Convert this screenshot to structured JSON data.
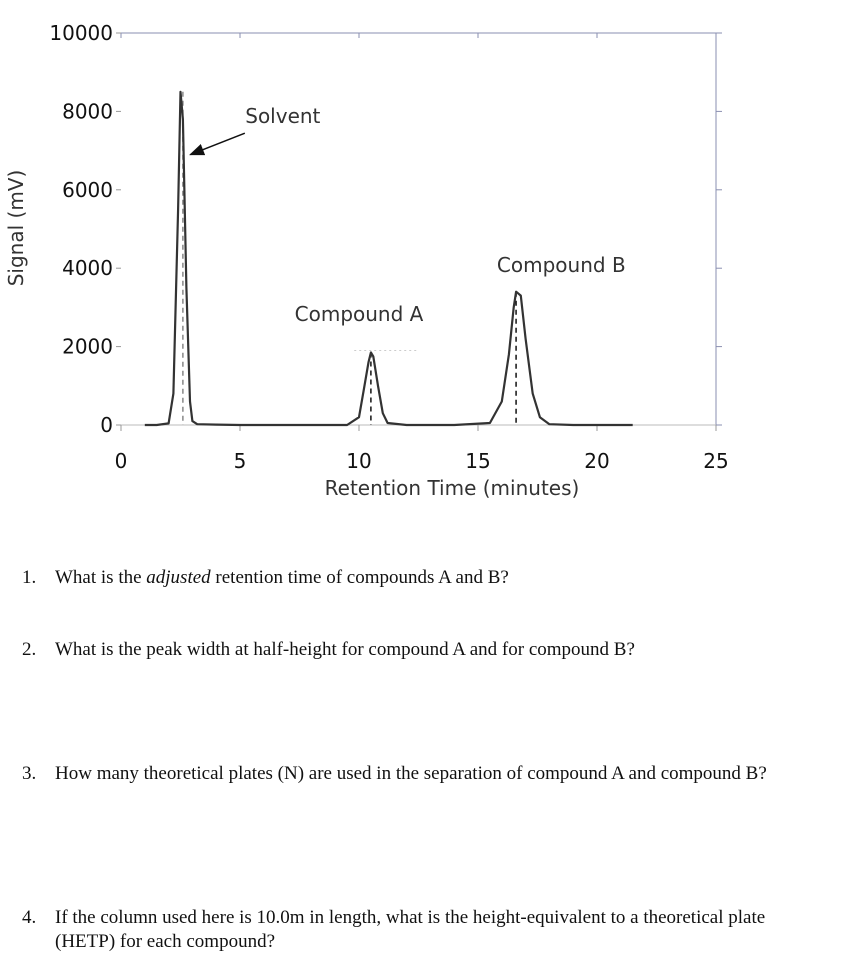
{
  "chart_data": {
    "type": "line",
    "xlabel": "Retention Time (minutes)",
    "ylabel": "Signal (mV)",
    "xlim": [
      0,
      25
    ],
    "ylim": [
      0,
      10000
    ],
    "x_ticks": [
      0,
      5,
      10,
      15,
      20,
      25
    ],
    "x_tick_labels": [
      "0",
      "5",
      "10",
      "15",
      "20",
      "25"
    ],
    "y_ticks": [
      0,
      2000,
      4000,
      6000,
      8000,
      10000
    ],
    "y_tick_labels": [
      "0",
      "2000",
      "4000",
      "6000",
      "8000",
      "10000"
    ],
    "grid": false,
    "series": [
      {
        "x": [
          1.0,
          1.5,
          2.0,
          2.2,
          2.4,
          2.5,
          2.6,
          2.75,
          2.9,
          3.0,
          3.2,
          4.0,
          5.0,
          6.0,
          8.0,
          9.5,
          10.0,
          10.2,
          10.4,
          10.5,
          10.6,
          10.8,
          11.0,
          11.2,
          12.0,
          14.0,
          15.5,
          16.0,
          16.3,
          16.5,
          16.6,
          16.7,
          16.8,
          17.0,
          17.3,
          17.6,
          18.0,
          19.0,
          20.0,
          21.5
        ],
        "y": [
          0,
          0,
          40,
          800,
          5500,
          8500,
          7800,
          3500,
          600,
          100,
          20,
          10,
          0,
          0,
          0,
          0,
          200,
          900,
          1600,
          1850,
          1750,
          1000,
          300,
          50,
          0,
          0,
          50,
          600,
          1800,
          3000,
          3400,
          3350,
          3300,
          2200,
          800,
          200,
          20,
          0,
          0,
          0
        ]
      }
    ],
    "retention_markers": [
      2.6,
      10.5,
      16.6
    ],
    "annotations": [
      {
        "text": "Solvent",
        "x": 6.8,
        "y": 7700,
        "arrow_to": [
          2.75,
          6900
        ]
      },
      {
        "text": "Compound A",
        "x": 10.0,
        "y": 2650
      },
      {
        "text": "Compound B",
        "x": 18.5,
        "y": 3900
      }
    ]
  },
  "questions": [
    {
      "number": "1.",
      "text_before": "What is the ",
      "emphasis": "adjusted",
      "text_after": " retention time of compounds A and B?"
    },
    {
      "number": "2.",
      "text_before": "What is the peak width at half-height for compound A and for compound B?",
      "emphasis": "",
      "text_after": ""
    },
    {
      "number": "3.",
      "text_before": "How many theoretical plates (N) are used in the separation of compound A and compound B?",
      "emphasis": "",
      "text_after": ""
    },
    {
      "number": "4.",
      "text_before": "If the column used here is 10.0m in length, what is the height-equivalent to a theoretical plate (HETP) for each compound?",
      "emphasis": "",
      "text_after": ""
    }
  ]
}
